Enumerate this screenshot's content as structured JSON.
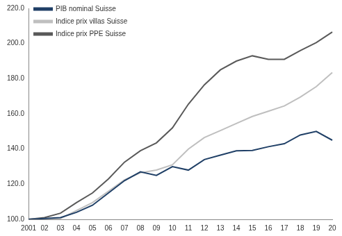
{
  "chart_data": {
    "type": "line",
    "categories": [
      "2001",
      "02",
      "03",
      "04",
      "05",
      "06",
      "07",
      "08",
      "09",
      "10",
      "11",
      "12",
      "13",
      "14",
      "15",
      "16",
      "17",
      "18",
      "19",
      "20"
    ],
    "series": [
      {
        "name": "PIB nominal Suisse",
        "color": "#1f3f66",
        "line_style": "solid",
        "values": [
          100,
          100.5,
          101,
          104,
          108,
          115,
          122,
          127,
          125,
          130,
          128,
          134,
          136.5,
          139,
          139.2,
          141.3,
          143,
          148,
          150,
          145
        ]
      },
      {
        "name": "Indice prix villas Suisse",
        "color": "#bfbfbf",
        "line_style": "solid",
        "values": [
          100,
          100.3,
          100.5,
          105,
          109.5,
          116,
          122.5,
          126.5,
          128,
          131,
          140,
          146.5,
          150.5,
          154.5,
          158.5,
          161.5,
          164.5,
          169.5,
          175.5,
          183.5
        ]
      },
      {
        "name": "Indice prix PPE Suisse",
        "color": "#595959",
        "line_style": "solid",
        "values": [
          100,
          101,
          103.5,
          109.5,
          115,
          123,
          132.5,
          139,
          143.5,
          152,
          165.5,
          176.5,
          185,
          190,
          193,
          191,
          191,
          196,
          200.5,
          206.5
        ]
      }
    ],
    "ylim": [
      100,
      220
    ],
    "yticks": [
      {
        "value": 100,
        "label": "100.0"
      },
      {
        "value": 120,
        "label": "120.0"
      },
      {
        "value": 140,
        "label": "140.0"
      },
      {
        "value": 160,
        "label": "160.0"
      },
      {
        "value": 180,
        "label": "180.0"
      },
      {
        "value": 200,
        "label": "200.0"
      },
      {
        "value": 220,
        "label": "220.0"
      }
    ],
    "grid": false,
    "legend": "top-left"
  }
}
